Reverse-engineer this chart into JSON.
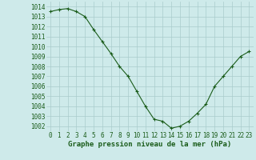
{
  "x": [
    0,
    1,
    2,
    3,
    4,
    5,
    6,
    7,
    8,
    9,
    10,
    11,
    12,
    13,
    14,
    15,
    16,
    17,
    18,
    19,
    20,
    21,
    22,
    23
  ],
  "y": [
    1013.5,
    1013.7,
    1013.8,
    1013.5,
    1013.0,
    1011.7,
    1010.5,
    1009.3,
    1008.0,
    1007.0,
    1005.5,
    1004.0,
    1002.7,
    1002.5,
    1001.8,
    1002.0,
    1002.5,
    1003.3,
    1004.2,
    1006.0,
    1007.0,
    1008.0,
    1009.0,
    1009.5
  ],
  "ylim": [
    1001.5,
    1014.5
  ],
  "yticks": [
    1002,
    1003,
    1004,
    1005,
    1006,
    1007,
    1008,
    1009,
    1010,
    1011,
    1012,
    1013,
    1014
  ],
  "xticks": [
    0,
    1,
    2,
    3,
    4,
    5,
    6,
    7,
    8,
    9,
    10,
    11,
    12,
    13,
    14,
    15,
    16,
    17,
    18,
    19,
    20,
    21,
    22,
    23
  ],
  "xlabel": "Graphe pression niveau de la mer (hPa)",
  "line_color": "#1a5c1a",
  "marker": "+",
  "marker_size": 3,
  "bg_color": "#ceeaea",
  "grid_color": "#aacccc",
  "tick_label_color": "#1a5c1a",
  "xlabel_color": "#1a5c1a",
  "xlabel_fontsize": 6.5,
  "tick_fontsize": 5.5
}
